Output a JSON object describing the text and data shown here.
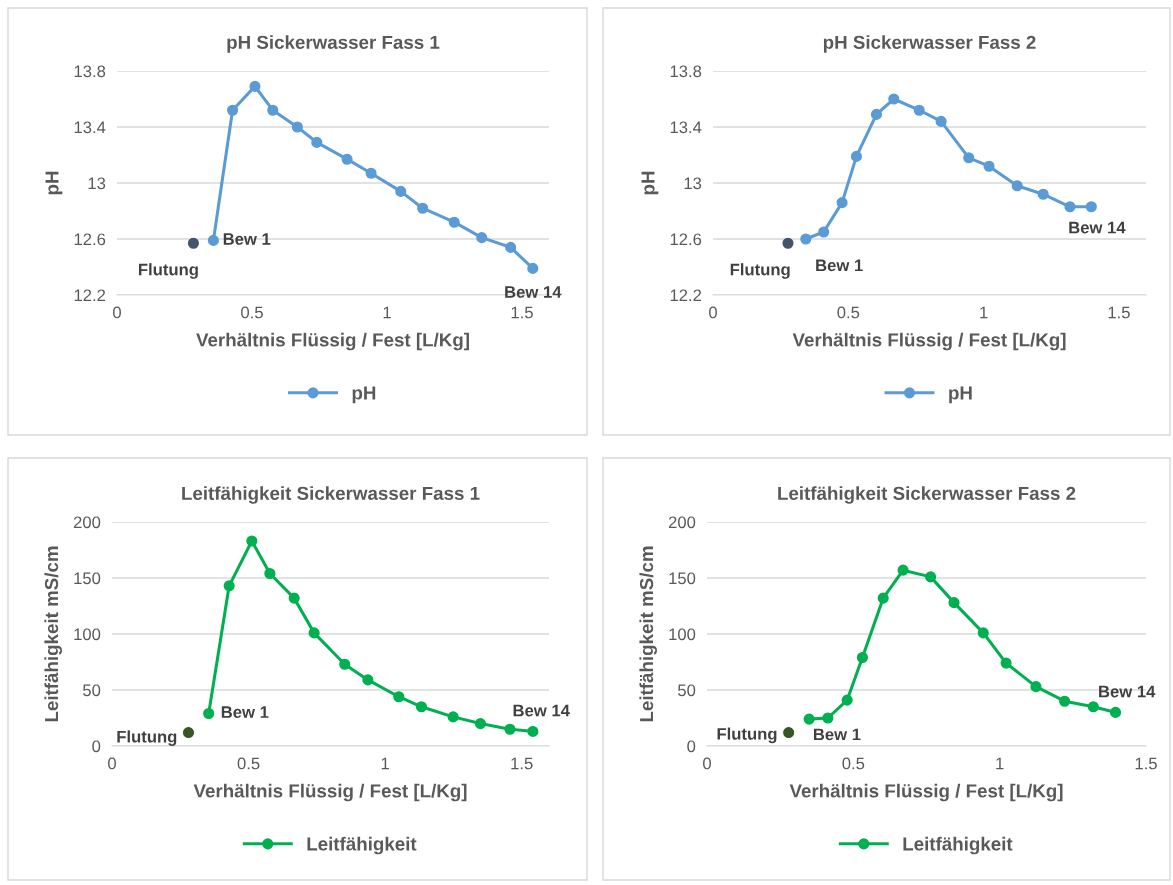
{
  "chart_data": [
    {
      "type": "line",
      "title": "pH Sickerwasser Fass 1",
      "xlabel": "Verhältnis Flüssig / Fest [L/Kg]",
      "ylabel": "pH",
      "xlim": [
        0,
        1.6
      ],
      "xticks": [
        0,
        0.5,
        1,
        1.5
      ],
      "ylim": [
        12.2,
        13.8
      ],
      "yticks": [
        12.2,
        12.6,
        13,
        13.4,
        13.8
      ],
      "grid": "y",
      "legend": "bottom",
      "marker": "circle",
      "series": [
        {
          "name": "pH",
          "color": "#5b9bd5",
          "x": [
            0.357,
            0.428,
            0.511,
            0.577,
            0.668,
            0.74,
            0.852,
            0.941,
            1.051,
            1.132,
            1.249,
            1.351,
            1.458,
            1.54
          ],
          "values": [
            12.59,
            13.52,
            13.69,
            13.52,
            13.4,
            13.29,
            13.17,
            13.07,
            12.94,
            12.82,
            12.72,
            12.61,
            12.54,
            12.39
          ]
        },
        {
          "type": "scatter",
          "color": "#44546a",
          "x": [
            0.283
          ],
          "values": [
            12.57
          ]
        }
      ],
      "annotations": [
        {
          "text": "Flutung",
          "x": 0.283,
          "y": 12.57
        },
        {
          "text": "Bew 1",
          "x": 0.357,
          "y": 12.59
        },
        {
          "text": "Bew 14",
          "x": 1.54,
          "y": 12.39
        }
      ]
    },
    {
      "type": "line",
      "title": "pH Sickerwasser Fass 2",
      "xlabel": "Verhältnis Flüssig / Fest [L/Kg]",
      "ylabel": "pH",
      "xlim": [
        0,
        1.6
      ],
      "xticks": [
        0,
        0.5,
        1,
        1.5
      ],
      "ylim": [
        12.2,
        13.8
      ],
      "yticks": [
        12.2,
        12.6,
        13,
        13.4,
        13.8
      ],
      "grid": "y",
      "legend": "bottom",
      "marker": "circle",
      "series": [
        {
          "name": "pH",
          "color": "#5b9bd5",
          "x": [
            0.343,
            0.409,
            0.477,
            0.53,
            0.604,
            0.668,
            0.762,
            0.843,
            0.945,
            1.02,
            1.124,
            1.22,
            1.319,
            1.398
          ],
          "values": [
            12.6,
            12.65,
            12.86,
            13.19,
            13.49,
            13.6,
            13.52,
            13.44,
            13.18,
            13.12,
            12.98,
            12.92,
            12.83,
            12.83
          ]
        },
        {
          "type": "scatter",
          "color": "#44546a",
          "x": [
            0.277
          ],
          "values": [
            12.57
          ]
        }
      ],
      "annotations": [
        {
          "text": "Flutung",
          "x": 0.277,
          "y": 12.57
        },
        {
          "text": "Bew 1",
          "x": 0.343,
          "y": 12.6
        },
        {
          "text": "Bew 14",
          "x": 1.398,
          "y": 12.83
        }
      ]
    },
    {
      "type": "line",
      "title": "Leitfähigkeit Sickerwasser Fass 1",
      "xlabel": "Verhältnis Flüssig / Fest [L/Kg]",
      "ylabel": "Leitfähigkeit mS/cm",
      "xlim": [
        0,
        1.6
      ],
      "xticks": [
        0,
        0.5,
        1,
        1.5
      ],
      "ylim": [
        0,
        200
      ],
      "yticks": [
        0,
        50,
        100,
        150,
        200
      ],
      "grid": "y",
      "legend": "bottom",
      "marker": "circle",
      "series": [
        {
          "name": "Leitfähigkeit",
          "color": "#00b050",
          "x": [
            0.354,
            0.429,
            0.512,
            0.578,
            0.667,
            0.74,
            0.852,
            0.937,
            1.05,
            1.133,
            1.249,
            1.349,
            1.457,
            1.541
          ],
          "values": [
            29,
            143,
            183,
            154,
            132,
            101,
            73,
            59,
            44,
            35,
            26,
            20,
            15,
            13
          ]
        },
        {
          "type": "scatter",
          "color": "#375623",
          "x": [
            0.28
          ],
          "values": [
            12
          ]
        }
      ],
      "annotations": [
        {
          "text": "Flutung",
          "x": 0.28,
          "y": 12
        },
        {
          "text": "Bew 1",
          "x": 0.354,
          "y": 29
        },
        {
          "text": "Bew 14",
          "x": 1.541,
          "y": 13
        }
      ]
    },
    {
      "type": "line",
      "title": "Leitfähigkeit Sickerwasser Fass 2",
      "xlabel": "Verhältnis Flüssig / Fest [L/Kg]",
      "ylabel": "Leitfähigkeit mS/cm",
      "xlim": [
        0,
        1.5
      ],
      "xticks": [
        0,
        0.5,
        1,
        1.5
      ],
      "ylim": [
        0,
        200
      ],
      "yticks": [
        0,
        50,
        100,
        150,
        200
      ],
      "grid": "y",
      "legend": "bottom",
      "marker": "circle",
      "series": [
        {
          "name": "Leitfähigkeit",
          "color": "#00b050",
          "x": [
            0.349,
            0.413,
            0.479,
            0.531,
            0.602,
            0.67,
            0.764,
            0.844,
            0.944,
            1.022,
            1.124,
            1.222,
            1.32,
            1.396
          ],
          "values": [
            24,
            25,
            41,
            79,
            132,
            157,
            151,
            128,
            101,
            74,
            53,
            40,
            35,
            30
          ]
        },
        {
          "type": "scatter",
          "color": "#375623",
          "x": [
            0.279
          ],
          "values": [
            12
          ]
        }
      ],
      "annotations": [
        {
          "text": "Flutung",
          "x": 0.279,
          "y": 12
        },
        {
          "text": "Bew 1",
          "x": 0.349,
          "y": 24
        },
        {
          "text": "Bew 14",
          "x": 1.396,
          "y": 30
        }
      ]
    }
  ]
}
